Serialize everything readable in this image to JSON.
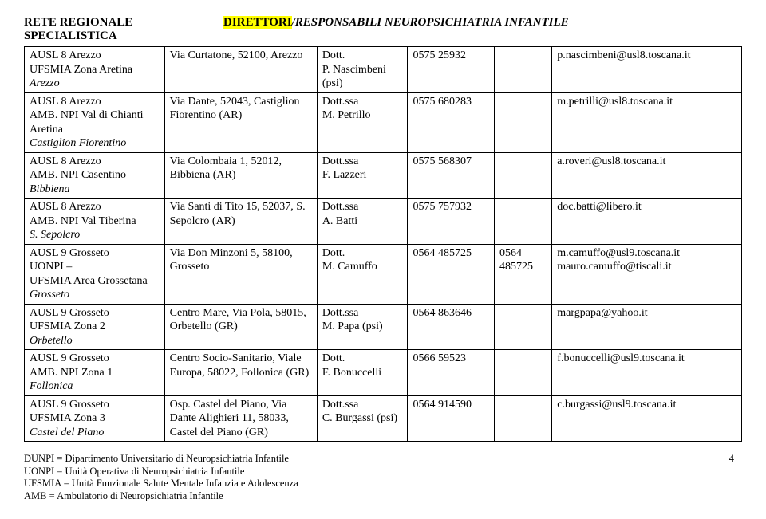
{
  "header": {
    "left": "RETE REGIONALE SPECIALISTICA",
    "right_hl": "DIRETTORI",
    "right_rest": "/RESPONSABILI NEUROPSICHIATRIA INFANTILE"
  },
  "rows": [
    {
      "org_lines": [
        "AUSL 8 Arezzo",
        "UFSMIA Zona Aretina"
      ],
      "org_italic": "Arezzo",
      "addr_lines": [
        "Via Curtatone, 52100, Arezzo"
      ],
      "name_lines": [
        "Dott.",
        "P. Nascimbeni (psi)"
      ],
      "phone1": "0575 25932",
      "phone2": "",
      "email_lines": [
        "p.nascimbeni@usl8.toscana.it"
      ]
    },
    {
      "org_lines": [
        "AUSL 8 Arezzo",
        "AMB. NPI Val di Chianti Aretina"
      ],
      "org_italic": "Castiglion Fiorentino",
      "addr_lines": [
        "Via Dante, 52043, Castiglion Fiorentino (AR)"
      ],
      "name_lines": [
        "Dott.ssa",
        "M. Petrillo"
      ],
      "phone1": "0575 680283",
      "phone2": "",
      "email_lines": [
        "m.petrilli@usl8.toscana.it"
      ]
    },
    {
      "org_lines": [
        "AUSL 8 Arezzo",
        "AMB. NPI Casentino"
      ],
      "org_italic": "Bibbiena",
      "addr_lines": [
        "Via Colombaia 1, 52012, Bibbiena (AR)"
      ],
      "name_lines": [
        "Dott.ssa",
        "F. Lazzeri"
      ],
      "phone1": "0575 568307",
      "phone2": "",
      "email_lines": [
        "a.roveri@usl8.toscana.it"
      ]
    },
    {
      "org_lines": [
        "AUSL 8 Arezzo",
        "AMB. NPI Val Tiberina"
      ],
      "org_italic": "S. Sepolcro",
      "addr_lines": [
        "Via Santi di Tito 15, 52037, S. Sepolcro (AR)"
      ],
      "name_lines": [
        "Dott.ssa",
        "A. Batti"
      ],
      "phone1": "0575 757932",
      "phone2": "",
      "email_lines": [
        "doc.batti@libero.it"
      ]
    },
    {
      "org_lines": [
        "AUSL 9 Grosseto",
        "UONPI –",
        "UFSMIA Area Grossetana"
      ],
      "org_italic": "Grosseto",
      "addr_lines": [
        "Via Don Minzoni 5, 58100, Grosseto"
      ],
      "name_lines": [
        "Dott.",
        "M. Camuffo"
      ],
      "phone1": "0564 485725",
      "phone2": "0564 485725",
      "email_lines": [
        "m.camuffo@usl9.toscana.it",
        "mauro.camuffo@tiscali.it"
      ]
    },
    {
      "org_lines": [
        "AUSL 9 Grosseto",
        "UFSMIA Zona 2"
      ],
      "org_italic": "Orbetello",
      "addr_lines": [
        "Centro Mare, Via Pola, 58015, Orbetello (GR)"
      ],
      "name_lines": [
        "Dott.ssa",
        "M. Papa (psi)"
      ],
      "phone1": "0564 863646",
      "phone2": "",
      "email_lines": [
        "margpapa@yahoo.it"
      ]
    },
    {
      "org_lines": [
        "AUSL 9 Grosseto",
        "AMB. NPI Zona 1"
      ],
      "org_italic": "Follonica",
      "addr_lines": [
        "Centro Socio-Sanitario, Viale Europa, 58022, Follonica (GR)"
      ],
      "name_lines": [
        "Dott.",
        "F. Bonuccelli"
      ],
      "phone1": "0566 59523",
      "phone2": "",
      "email_lines": [
        "f.bonuccelli@usl9.toscana.it"
      ]
    },
    {
      "org_lines": [
        "AUSL 9 Grosseto",
        "UFSMIA Zona 3"
      ],
      "org_italic": "Castel del Piano",
      "addr_lines": [
        "Osp. Castel del Piano, Via Dante Alighieri 11, 58033, Castel del Piano (GR)"
      ],
      "name_lines": [
        "Dott.ssa",
        "C. Burgassi (psi)"
      ],
      "phone1": "0564 914590",
      "phone2": "",
      "email_lines": [
        "c.burgassi@usl9.toscana.it"
      ]
    }
  ],
  "footer": {
    "lines": [
      "DUNPI = Dipartimento Universitario di Neuropsichiatria Infantile",
      "UONPI = Unità Operativa di Neuropsichiatria Infantile",
      "UFSMIA = Unità Funzionale Salute Mentale Infanzia e Adolescenza",
      "AMB = Ambulatorio di Neuropsichiatria Infantile"
    ],
    "page": "4"
  }
}
